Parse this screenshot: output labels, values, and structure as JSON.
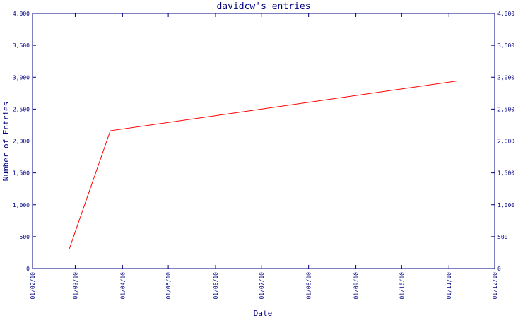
{
  "chart_data": {
    "type": "line",
    "title": "davidcw's entries",
    "x_label": "Date",
    "y_label": "Number of Entries",
    "x": [
      "25/02/10",
      "24/03/10",
      "06/11/10"
    ],
    "series": [
      {
        "name": "entries",
        "color": "#ff0000",
        "values": [
          300,
          2160,
          2940
        ]
      }
    ],
    "xlim": [
      "01/02/10",
      "01/12/10"
    ],
    "xticks": [
      "01/02/10",
      "01/03/10",
      "01/04/10",
      "01/05/10",
      "01/06/10",
      "01/07/10",
      "01/08/10",
      "01/09/10",
      "01/10/10",
      "01/11/10",
      "01/12/10"
    ],
    "ylim": [
      0,
      4000
    ],
    "yticks": [
      0,
      500,
      {
        "value": 1000,
        "label": "1,000"
      },
      {
        "value": 1500,
        "label": "1,500"
      },
      {
        "value": 2000,
        "label": "2,000"
      },
      {
        "value": 2500,
        "label": "2,500"
      },
      {
        "value": 3000,
        "label": "3,000"
      },
      {
        "value": 3500,
        "label": "3,500"
      },
      {
        "value": 4000,
        "label": "4,000"
      }
    ],
    "axis_color": "#000080"
  }
}
